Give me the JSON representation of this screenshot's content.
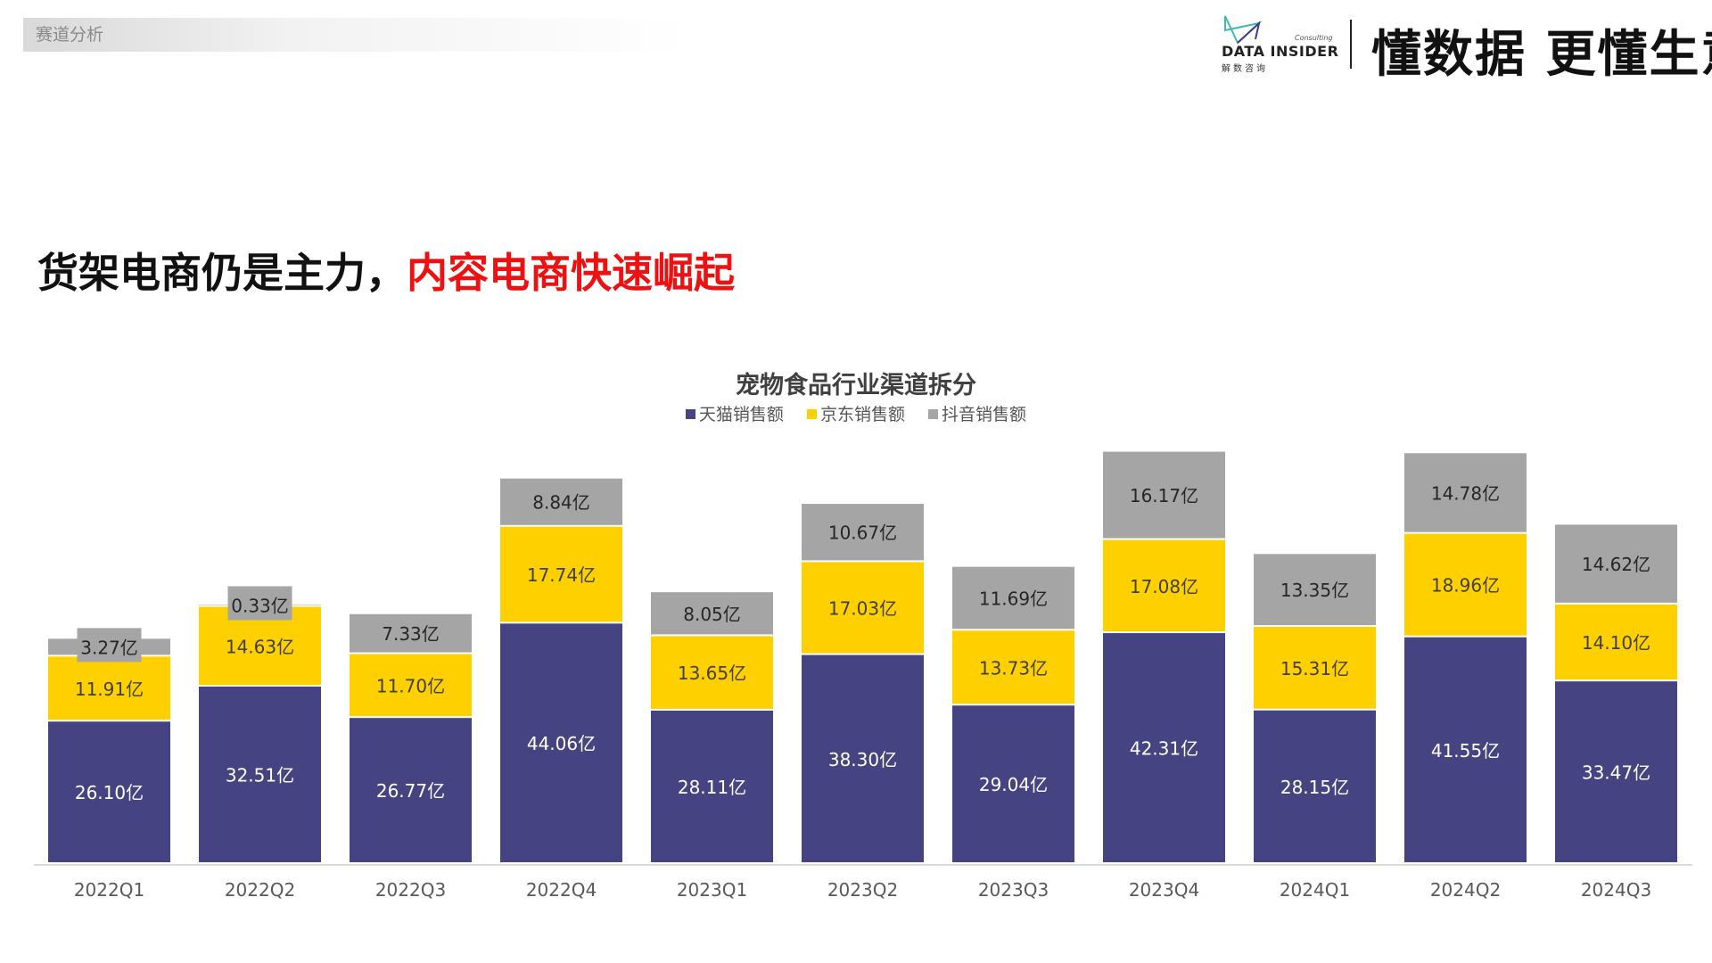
{
  "header": {
    "section_tag": "赛道分析",
    "logo": {
      "name": "DATA INSIDER",
      "sub": "解数咨询",
      "consulting": "Consulting"
    },
    "slogan": "懂数据 更懂生意"
  },
  "headline": {
    "part1": "货架电商仍是主力，",
    "part2": "内容电商快速崛起"
  },
  "colors": {
    "tmall": "#454382",
    "jd": "#ffd000",
    "douyin": "#a5a5a5",
    "headline_accent": "#ee1111"
  },
  "chart_data": {
    "type": "bar",
    "stacked": true,
    "title": "宠物食品行业渠道拆分",
    "categories": [
      "2022Q1",
      "2022Q2",
      "2022Q3",
      "2022Q4",
      "2023Q1",
      "2023Q2",
      "2023Q3",
      "2023Q4",
      "2024Q1",
      "2024Q2",
      "2024Q3"
    ],
    "unit": "亿",
    "series": [
      {
        "name": "天猫销售额",
        "color": "#454382",
        "values": [
          26.1,
          32.51,
          26.77,
          44.06,
          28.11,
          38.3,
          29.04,
          42.31,
          28.15,
          41.55,
          33.47
        ]
      },
      {
        "name": "京东销售额",
        "color": "#ffd000",
        "values": [
          11.91,
          14.63,
          11.7,
          17.74,
          13.65,
          17.03,
          13.73,
          17.08,
          15.31,
          18.96,
          14.1
        ]
      },
      {
        "name": "抖音销售额",
        "color": "#a5a5a5",
        "values": [
          3.27,
          0.33,
          7.33,
          8.84,
          8.05,
          10.67,
          11.69,
          16.17,
          13.35,
          14.78,
          14.62
        ]
      }
    ],
    "legend_position": "top",
    "grid": false,
    "ylim": [
      0,
      80
    ]
  }
}
